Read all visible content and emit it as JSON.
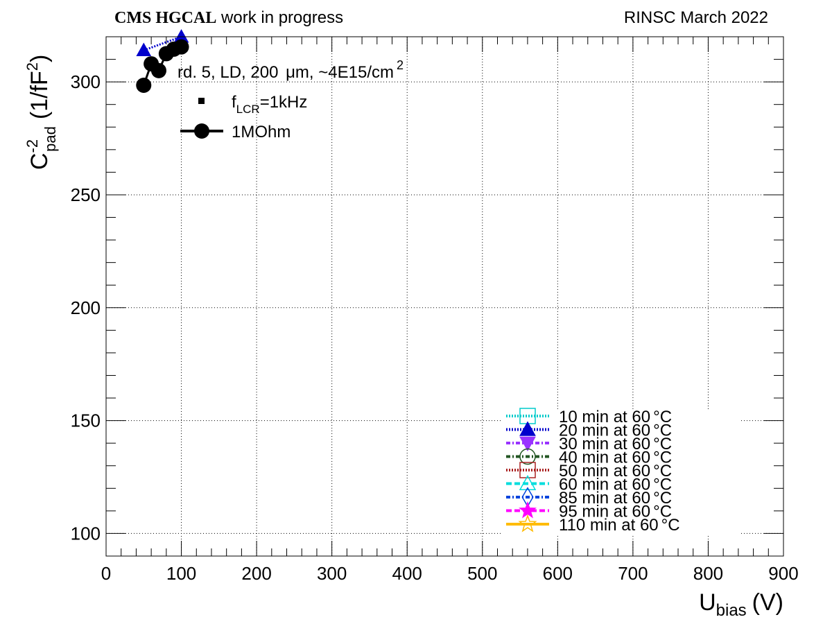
{
  "header": {
    "brand": "CMS HGCAL",
    "brand_note": "work in progress",
    "right_note": "RINSC March 2022"
  },
  "annotation": {
    "sample": "rd. 5, LD, 200",
    "unit_um": "μm,",
    "fluence": "~4E15/cm",
    "fluence_exp": "2"
  },
  "legend_top": {
    "items": [
      {
        "prefix": "f",
        "sub": "LCR",
        "suffix": "=1kHz",
        "marker": "square"
      },
      {
        "label": "1MOhm",
        "marker": "circle"
      }
    ]
  },
  "axes": {
    "x_main": "U",
    "x_sub": "bias",
    "x_unit": "(V)",
    "y_main": "C",
    "y_sup": "-2",
    "y_sub": "pad",
    "y_unit": "(1/fF",
    "y_unit_sup": "2",
    "y_unit_close": ")"
  },
  "chart_data": {
    "type": "scatter",
    "xlim": [
      0,
      900
    ],
    "ylim": [
      90,
      320
    ],
    "x_ticks": [
      0,
      100,
      200,
      300,
      400,
      500,
      600,
      700,
      800,
      900
    ],
    "x_tick_labels": [
      "0",
      "100",
      "200",
      "300",
      "400",
      "500",
      "600",
      "700",
      "800",
      "900"
    ],
    "y_ticks": [
      100,
      150,
      200,
      250,
      300
    ],
    "y_tick_labels": [
      "100",
      "150",
      "200",
      "250",
      "300"
    ],
    "grid": true,
    "legend_position": "bottom-right",
    "series": [
      {
        "name": "10 min at 60",
        "deg": "°C",
        "color": "#00cccc",
        "marker": "open-square",
        "dash": "dotted",
        "x": [],
        "y": []
      },
      {
        "name": "20 min at 60",
        "deg": "°C",
        "color": "#0000cc",
        "marker": "filled-triangle-up",
        "dash": "dotted",
        "x": [
          50,
          100
        ],
        "y": [
          314,
          320
        ]
      },
      {
        "name": "30 min at 60",
        "deg": "°C",
        "color": "#9933ff",
        "marker": "filled-triangle-down",
        "dash": "dashdot",
        "x": [],
        "y": []
      },
      {
        "name": "40 min at 60",
        "deg": "°C",
        "color": "#225522",
        "marker": "open-circle",
        "dash": "dashdot",
        "x": [],
        "y": []
      },
      {
        "name": "50 min at 60",
        "deg": "°C",
        "color": "#aa2222",
        "marker": "open-square",
        "dash": "dotted",
        "x": [],
        "y": []
      },
      {
        "name": "60 min at 60",
        "deg": "°C",
        "color": "#00dddd",
        "marker": "open-triangle-up",
        "dash": "dashed",
        "x": [],
        "y": []
      },
      {
        "name": "85 min at 60",
        "deg": "°C",
        "color": "#0044dd",
        "marker": "open-diamond",
        "dash": "dashdot",
        "x": [],
        "y": []
      },
      {
        "name": "95 min at 60",
        "deg": "°C",
        "color": "#ff00ff",
        "marker": "filled-star",
        "dash": "dashed",
        "x": [],
        "y": []
      },
      {
        "name": "110 min at 60",
        "deg": "°C",
        "color": "#ffbb00",
        "marker": "open-star",
        "dash": "solid",
        "x": [],
        "y": []
      }
    ],
    "black_points": {
      "x": [
        50,
        60,
        70,
        80,
        90,
        100
      ],
      "y": [
        298.5,
        308,
        305,
        312.5,
        314.5,
        315.5
      ]
    }
  }
}
